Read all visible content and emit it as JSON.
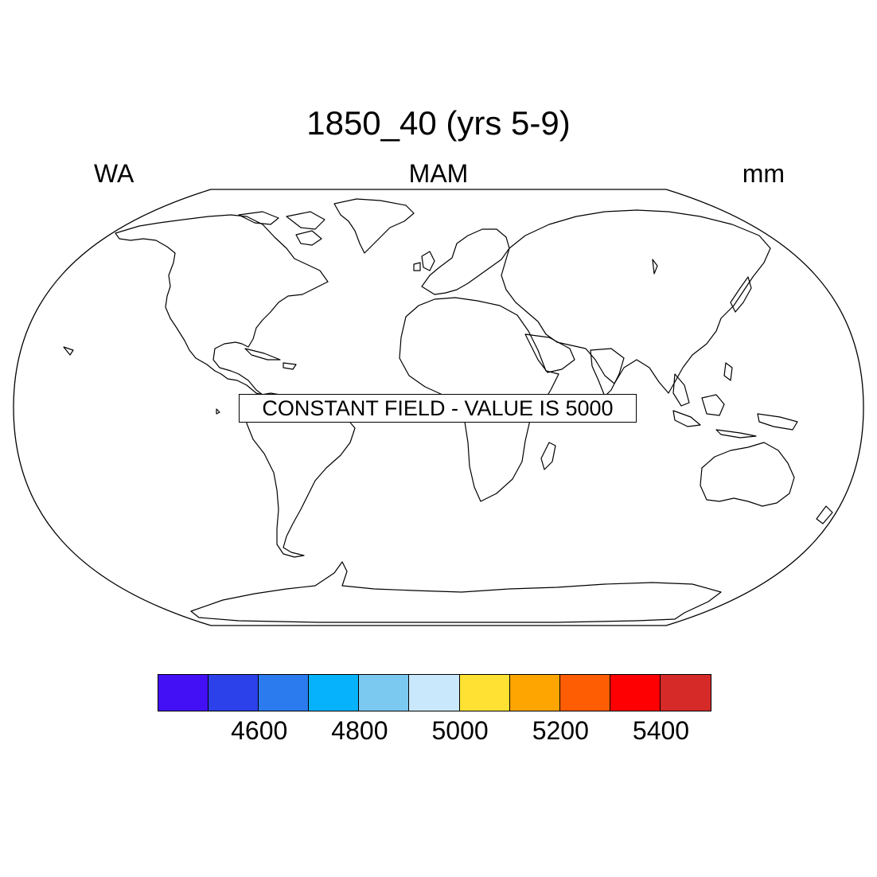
{
  "title": "1850_40 (yrs 5-9)",
  "left_label": "WA",
  "center_label": "MAM",
  "right_label": "mm",
  "notice": "CONSTANT FIELD - VALUE IS 5000",
  "colorbar": {
    "colors": [
      "#4310f6",
      "#2c41e9",
      "#2b7bef",
      "#06b2fc",
      "#7bc8f1",
      "#c9e8fb",
      "#fee133",
      "#fea502",
      "#fe5d04",
      "#fe0002",
      "#d62a29"
    ],
    "tick_labels": [
      "4600",
      "4800",
      "5000",
      "5200",
      "5400"
    ]
  }
}
